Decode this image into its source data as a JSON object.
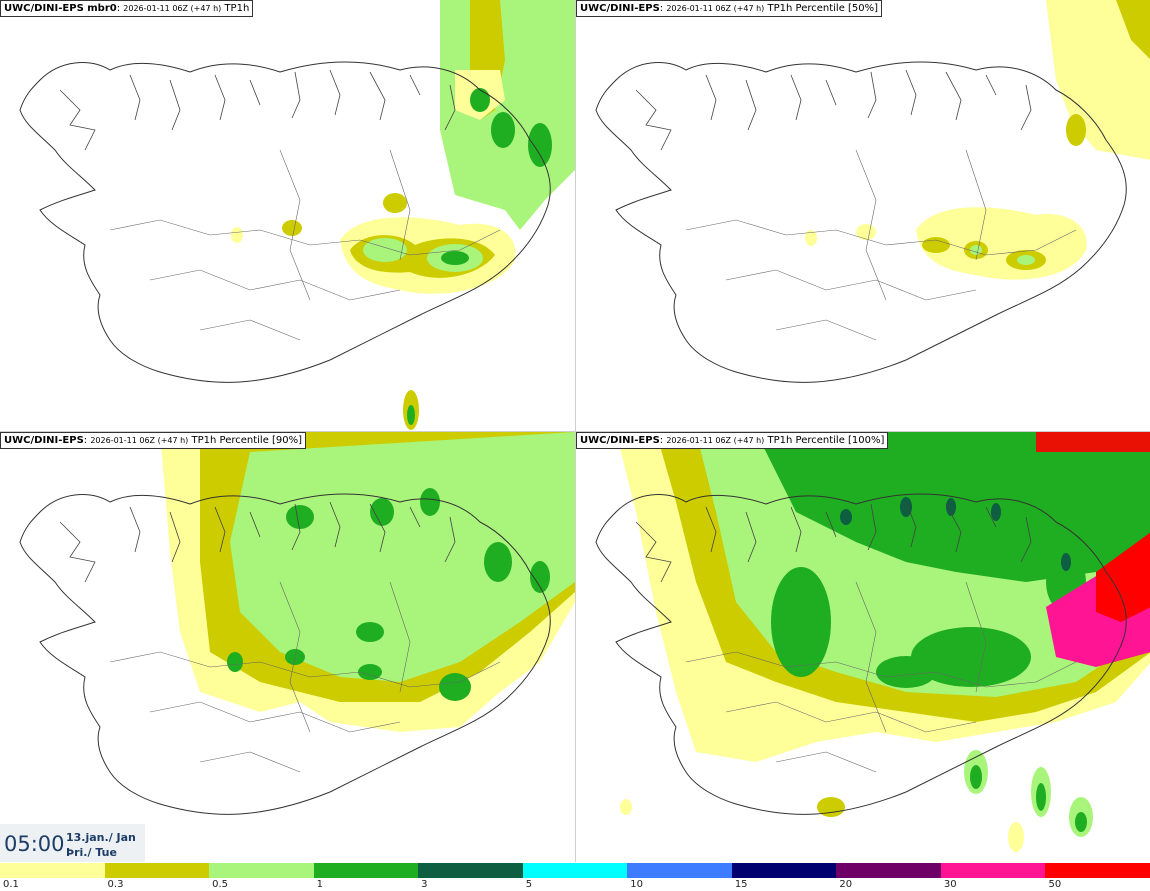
{
  "panels": [
    {
      "model": "UWC/DINI-EPS mbr0",
      "run": "2026-01-11 06Z (+47 h)",
      "field": "TP1h"
    },
    {
      "model": "UWC/DINI-EPS",
      "run": "2026-01-11 06Z (+47 h)",
      "field": "TP1h Percentile [50%]"
    },
    {
      "model": "UWC/DINI-EPS",
      "run": "2026-01-11 06Z (+47 h)",
      "field": "TP1h Percentile [90%]"
    },
    {
      "model": "UWC/DINI-EPS",
      "run": "2026-01-11 06Z (+47 h)",
      "field": "TP1h Percentile [100%]"
    }
  ],
  "valid_time": {
    "hour": "05:00",
    "date": "13.jan./ Jan",
    "weekday": "Þri./ Tue"
  },
  "legend": {
    "colors": [
      "#ffff99",
      "#cccc00",
      "#a9f57b",
      "#1fae22",
      "#0e5e42",
      "#00ffff",
      "#3d7cff",
      "#000070",
      "#6f0068",
      "#ff1493",
      "#ff0000"
    ],
    "labels": [
      "0.1",
      "0.3",
      "0.5",
      "1",
      "3",
      "5",
      "10",
      "15",
      "20",
      "30",
      "50"
    ]
  }
}
